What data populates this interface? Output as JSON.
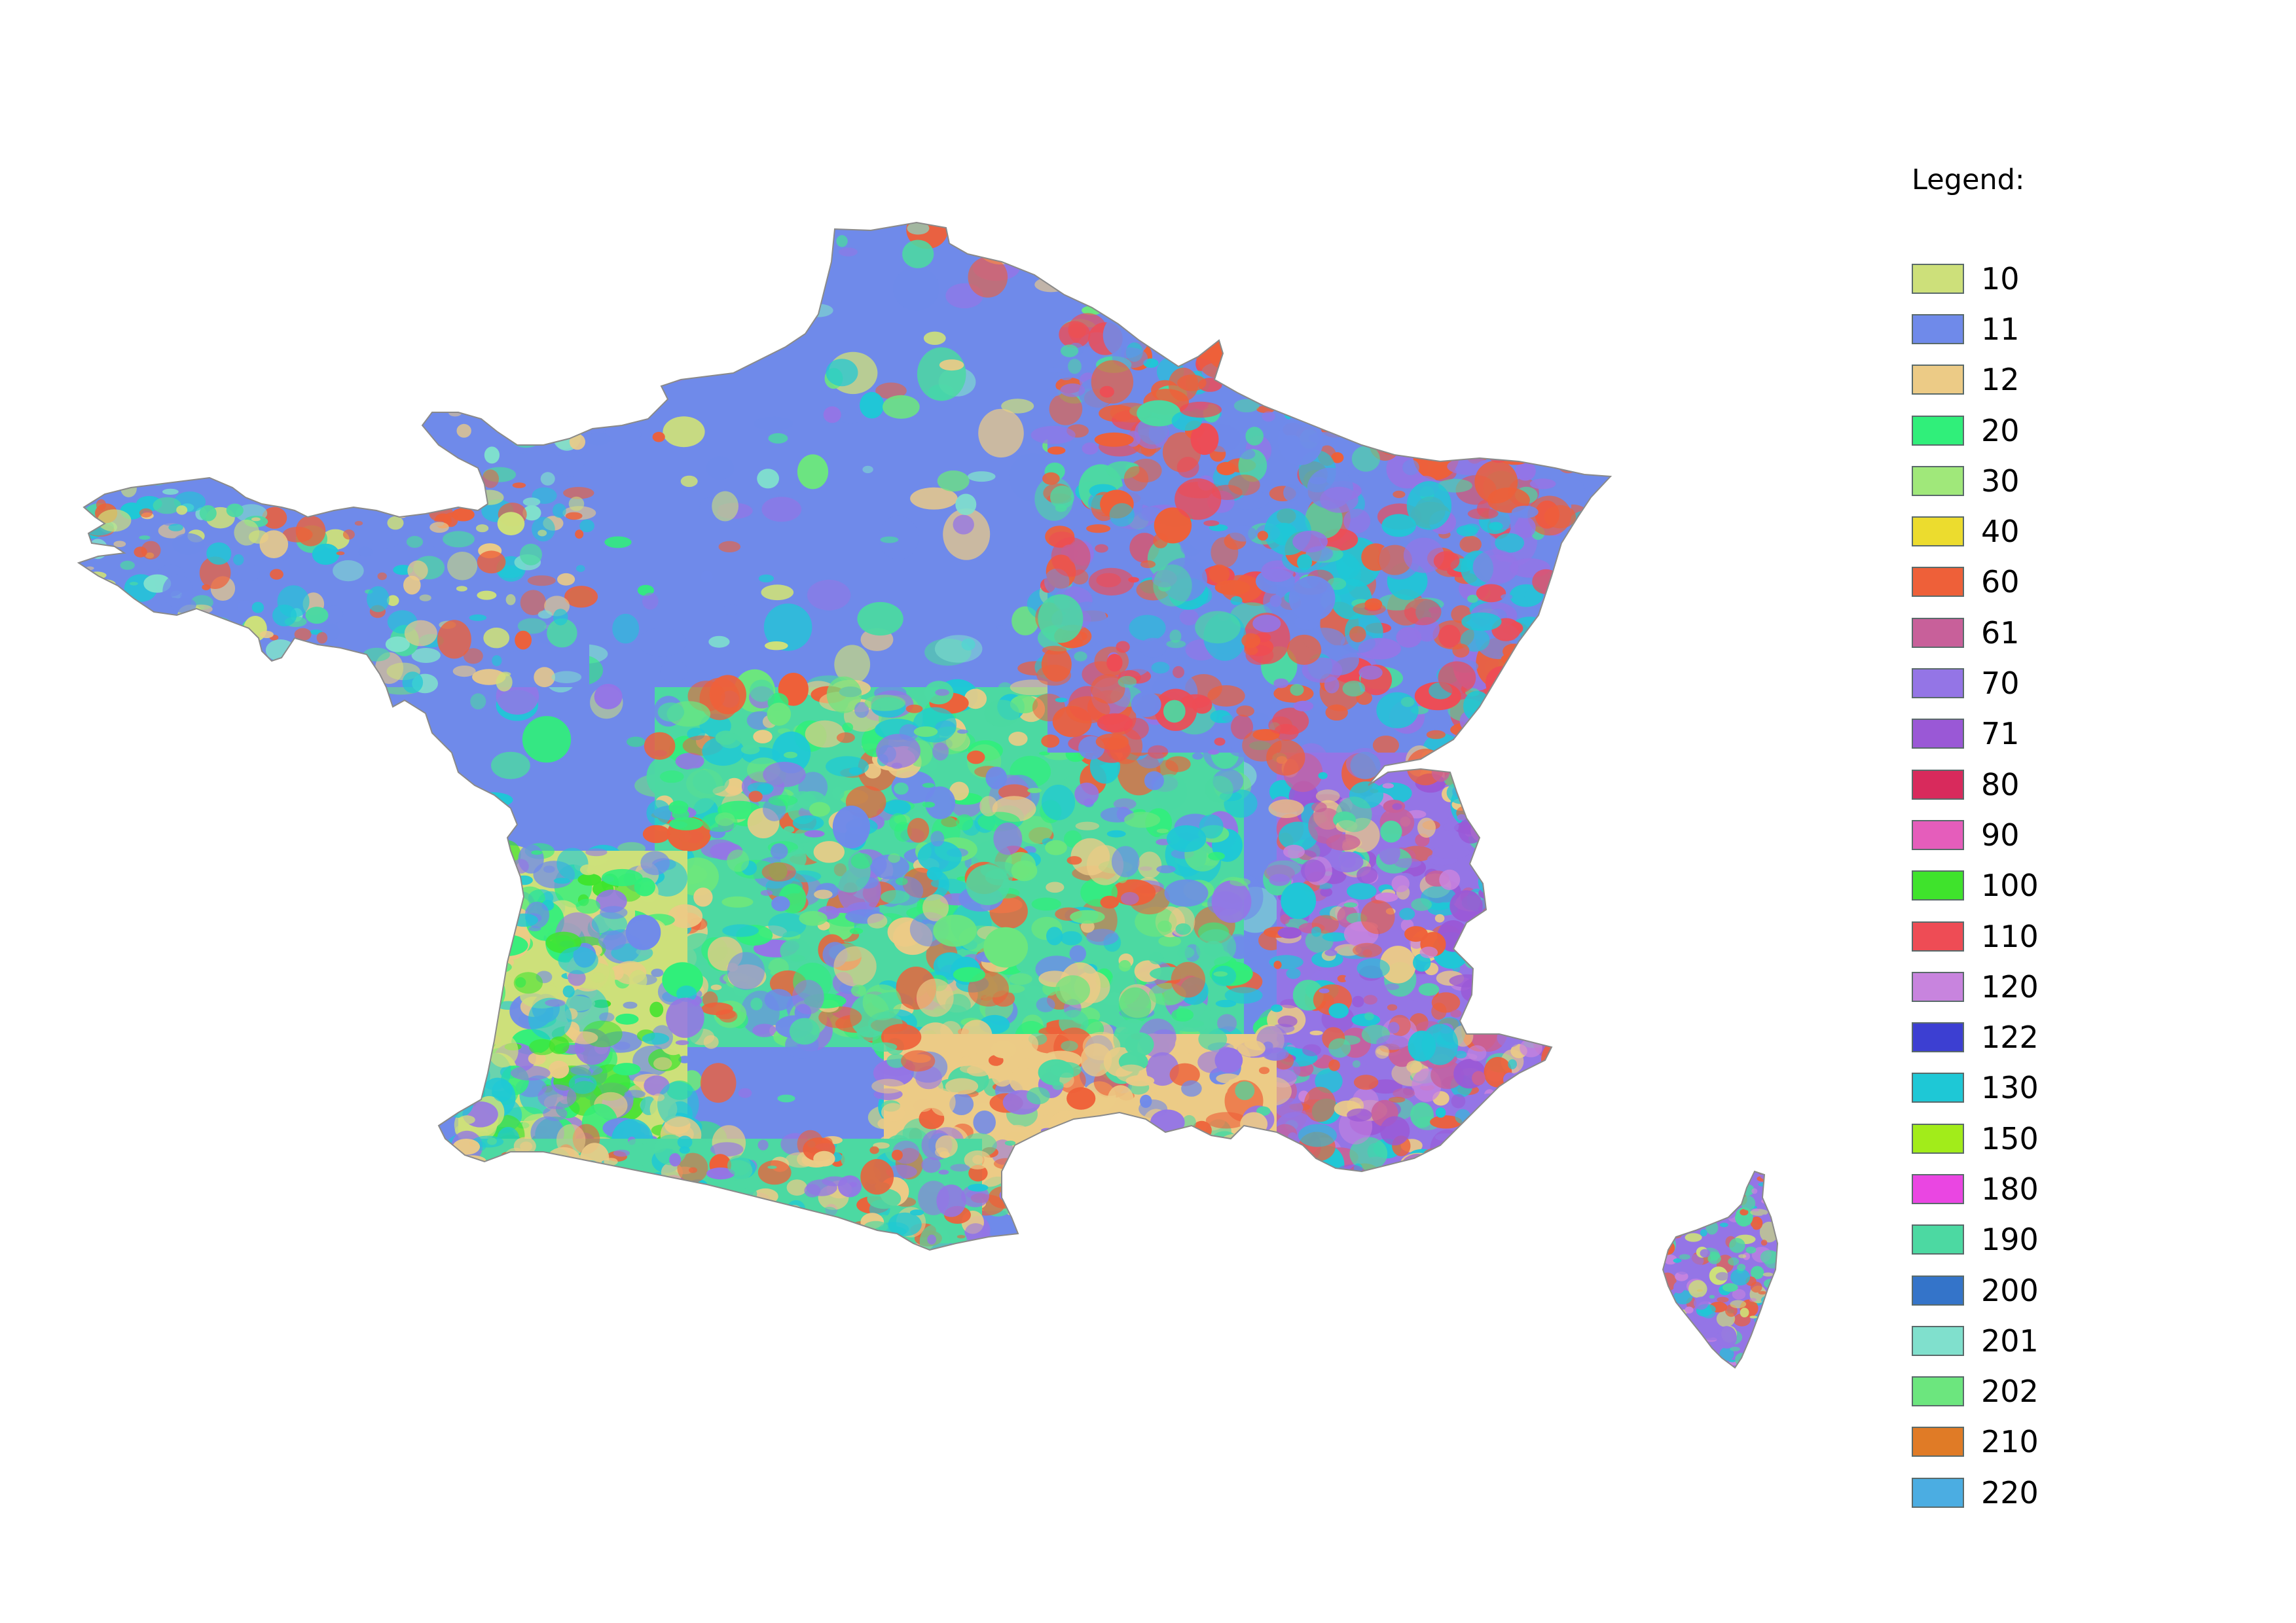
{
  "legend": {
    "title": "Legend:",
    "items": [
      {
        "label": "10",
        "color": "#cde07a"
      },
      {
        "label": "11",
        "color": "#6f8aea"
      },
      {
        "label": "12",
        "color": "#eccb86"
      },
      {
        "label": "20",
        "color": "#30ef7a"
      },
      {
        "label": "30",
        "color": "#a0e87a"
      },
      {
        "label": "40",
        "color": "#ecdc2e"
      },
      {
        "label": "60",
        "color": "#ee6039"
      },
      {
        "label": "61",
        "color": "#c8609a"
      },
      {
        "label": "70",
        "color": "#9475e6"
      },
      {
        "label": "71",
        "color": "#9a58d6"
      },
      {
        "label": "80",
        "color": "#d82a5c"
      },
      {
        "label": "90",
        "color": "#e55dbb"
      },
      {
        "label": "100",
        "color": "#3fe32c"
      },
      {
        "label": "110",
        "color": "#ee4c55"
      },
      {
        "label": "120",
        "color": "#c884de"
      },
      {
        "label": "122",
        "color": "#3c3fd2"
      },
      {
        "label": "130",
        "color": "#1ec8d6"
      },
      {
        "label": "150",
        "color": "#a2ec1a"
      },
      {
        "label": "180",
        "color": "#ea46e2"
      },
      {
        "label": "190",
        "color": "#4cd9a2"
      },
      {
        "label": "200",
        "color": "#3474c9"
      },
      {
        "label": "201",
        "color": "#80e0cd"
      },
      {
        "label": "202",
        "color": "#6ce67e"
      },
      {
        "label": "210",
        "color": "#e07b26"
      },
      {
        "label": "220",
        "color": "#4bade2"
      }
    ]
  }
}
